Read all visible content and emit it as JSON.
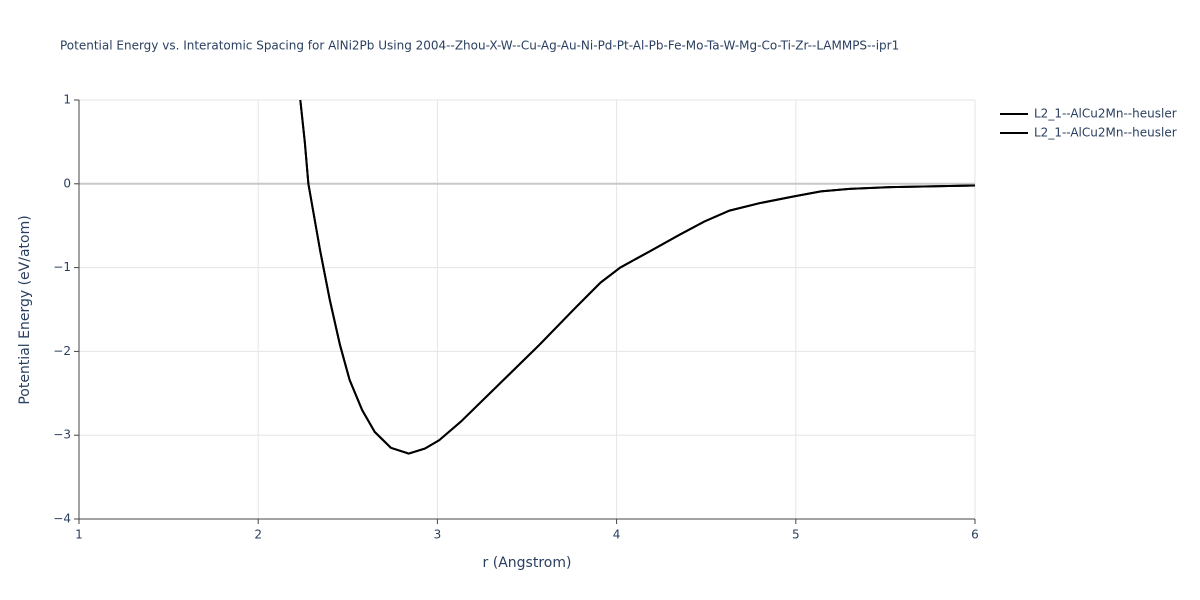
{
  "chart_data": {
    "type": "line",
    "title": "Potential Energy vs. Interatomic Spacing for AlNi2Pb Using 2004--Zhou-X-W--Cu-Ag-Au-Ni-Pd-Pt-Al-Pb-Fe-Mo-Ta-W-Mg-Co-Ti-Zr--LAMMPS--ipr1",
    "x_label": "r (Angstrom)",
    "y_label": "Potential Energy (eV/atom)",
    "xlim": [
      1,
      6
    ],
    "ylim": [
      -4,
      1
    ],
    "xticks": [
      1,
      2,
      3,
      4,
      5,
      6
    ],
    "yticks": [
      {
        "value": -4,
        "label": "−4"
      },
      {
        "value": -3,
        "label": "−3"
      },
      {
        "value": -2,
        "label": "−2"
      },
      {
        "value": -1,
        "label": "−1"
      },
      0,
      1
    ],
    "grid": true,
    "series": [
      {
        "name": "L2_1--AlCu2Mn--heusler",
        "color": "#000000",
        "x": [
          2.235,
          2.26,
          2.28,
          2.345,
          2.4,
          2.456,
          2.51,
          2.58,
          2.65,
          2.74,
          2.84,
          2.93,
          3.01,
          3.13,
          3.57,
          3.77,
          3.91,
          4.02,
          4.19,
          4.35,
          4.49,
          4.63,
          4.8,
          4.99,
          5.14,
          5.3,
          5.53,
          6.0
        ],
        "values": [
          1.0,
          0.5,
          0.0,
          -0.79,
          -1.39,
          -1.92,
          -2.34,
          -2.7,
          -2.96,
          -3.15,
          -3.22,
          -3.16,
          -3.06,
          -2.84,
          -1.92,
          -1.48,
          -1.18,
          -1.0,
          -0.8,
          -0.61,
          -0.45,
          -0.32,
          -0.23,
          -0.15,
          -0.09,
          -0.06,
          -0.04,
          -0.02
        ]
      },
      {
        "name": "L2_1--AlCu2Mn--heusler",
        "color": "#000000",
        "x": [
          2.235,
          2.26,
          2.28,
          2.345,
          2.4,
          2.456,
          2.51,
          2.58,
          2.65,
          2.74,
          2.84,
          2.93,
          3.01,
          3.13,
          3.57,
          3.77,
          3.91,
          4.02,
          4.19,
          4.35,
          4.49,
          4.63,
          4.8,
          4.99,
          5.14,
          5.3,
          5.53,
          6.0
        ],
        "values": [
          1.0,
          0.5,
          0.0,
          -0.79,
          -1.39,
          -1.92,
          -2.34,
          -2.7,
          -2.96,
          -3.15,
          -3.22,
          -3.16,
          -3.06,
          -2.84,
          -1.92,
          -1.48,
          -1.18,
          -1.0,
          -0.8,
          -0.61,
          -0.45,
          -0.32,
          -0.23,
          -0.15,
          -0.09,
          -0.06,
          -0.04,
          -0.02
        ]
      }
    ]
  }
}
